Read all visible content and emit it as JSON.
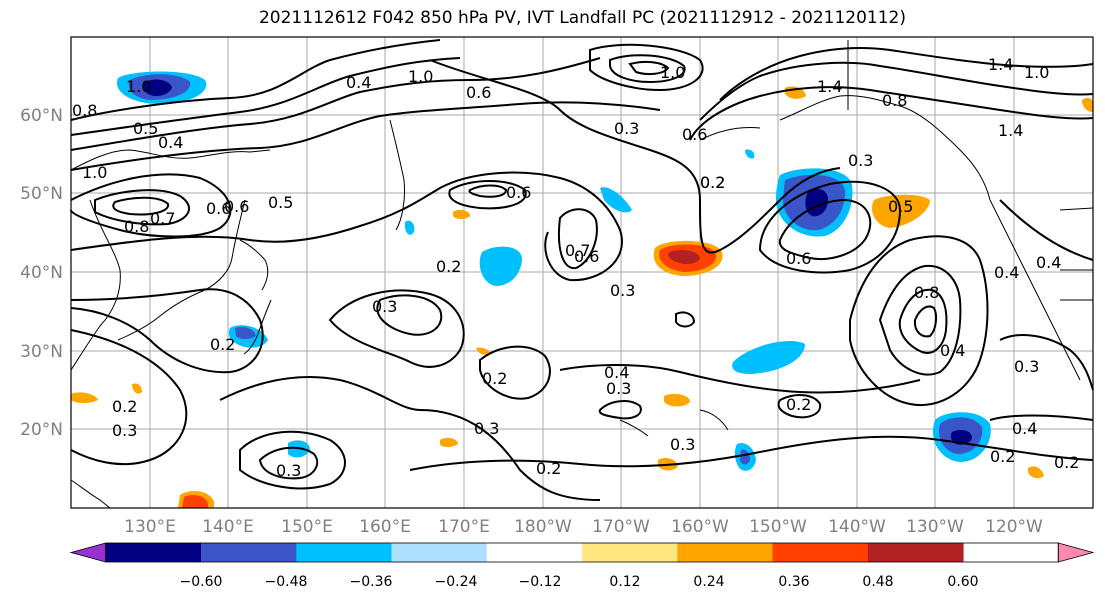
{
  "title": "2021112612 F042 850 hPa PV, IVT Landfall PC (2021112912 - 2021120112)",
  "lat_labels": [
    "60°N",
    "50°N",
    "40°N",
    "30°N",
    "20°N"
  ],
  "lon_labels": [
    "130°E",
    "140°E",
    "150°E",
    "160°E",
    "170°E",
    "180°W",
    "170°W",
    "160°W",
    "150°W",
    "140°W",
    "130°W",
    "120°W"
  ],
  "colorbar": {
    "ticks": [
      "−0.60",
      "−0.48",
      "−0.36",
      "−0.24",
      "−0.12",
      "0.12",
      "0.24",
      "0.36",
      "0.48",
      "0.60"
    ],
    "colors": [
      "#9b30d0",
      "#000080",
      "#3a55c8",
      "#00bfff",
      "#b0e0ff",
      "#ffffff",
      "#ffe680",
      "#ffa500",
      "#ff4000",
      "#b22222",
      "#ff88b0"
    ]
  },
  "contour_labels": [
    "1.0",
    "0.8",
    "0.5",
    "0.4",
    "1.0",
    "0.8",
    "0.6",
    "0.7",
    "0.5",
    "0.6",
    "0.4",
    "1.0",
    "0.6",
    "0.3",
    "0.2",
    "0.6",
    "1.0",
    "1.4",
    "0.8",
    "1.4",
    "1.0",
    "1.4",
    "0.3",
    "0.2",
    "0.6",
    "0.7",
    "0.6",
    "0.5",
    "0.6",
    "0.4",
    "0.4",
    "0.2",
    "0.3",
    "0.3",
    "0.2",
    "0.8",
    "0.4",
    "0.3",
    "0.2",
    "0.4",
    "0.3",
    "0.2",
    "0.3",
    "0.3",
    "0.2",
    "0.3",
    "0.2",
    "0.3",
    "0.4",
    "0.2",
    "0.2"
  ]
}
